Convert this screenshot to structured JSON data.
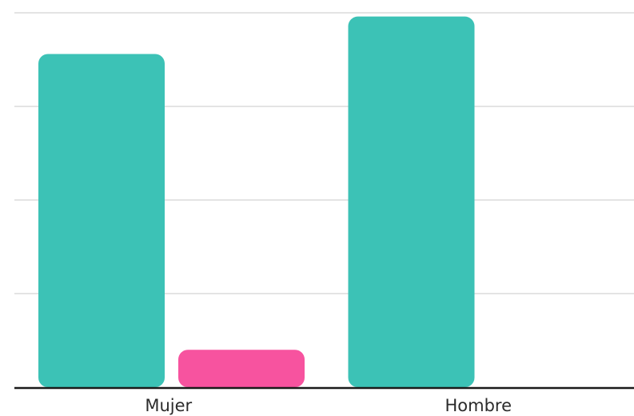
{
  "chart_data": {
    "type": "bar",
    "categories": [
      "Mujer",
      "Hombre"
    ],
    "series": [
      {
        "color": "#3cc2b6",
        "values": [
          89,
          99
        ]
      },
      {
        "color": "#f7539f",
        "values": [
          10,
          0
        ]
      }
    ],
    "ylim": [
      0,
      100
    ],
    "yticks": [
      0,
      25,
      50,
      75,
      100
    ],
    "grid": true,
    "legend": "none",
    "title": "",
    "xlabel": "",
    "ylabel": ""
  }
}
